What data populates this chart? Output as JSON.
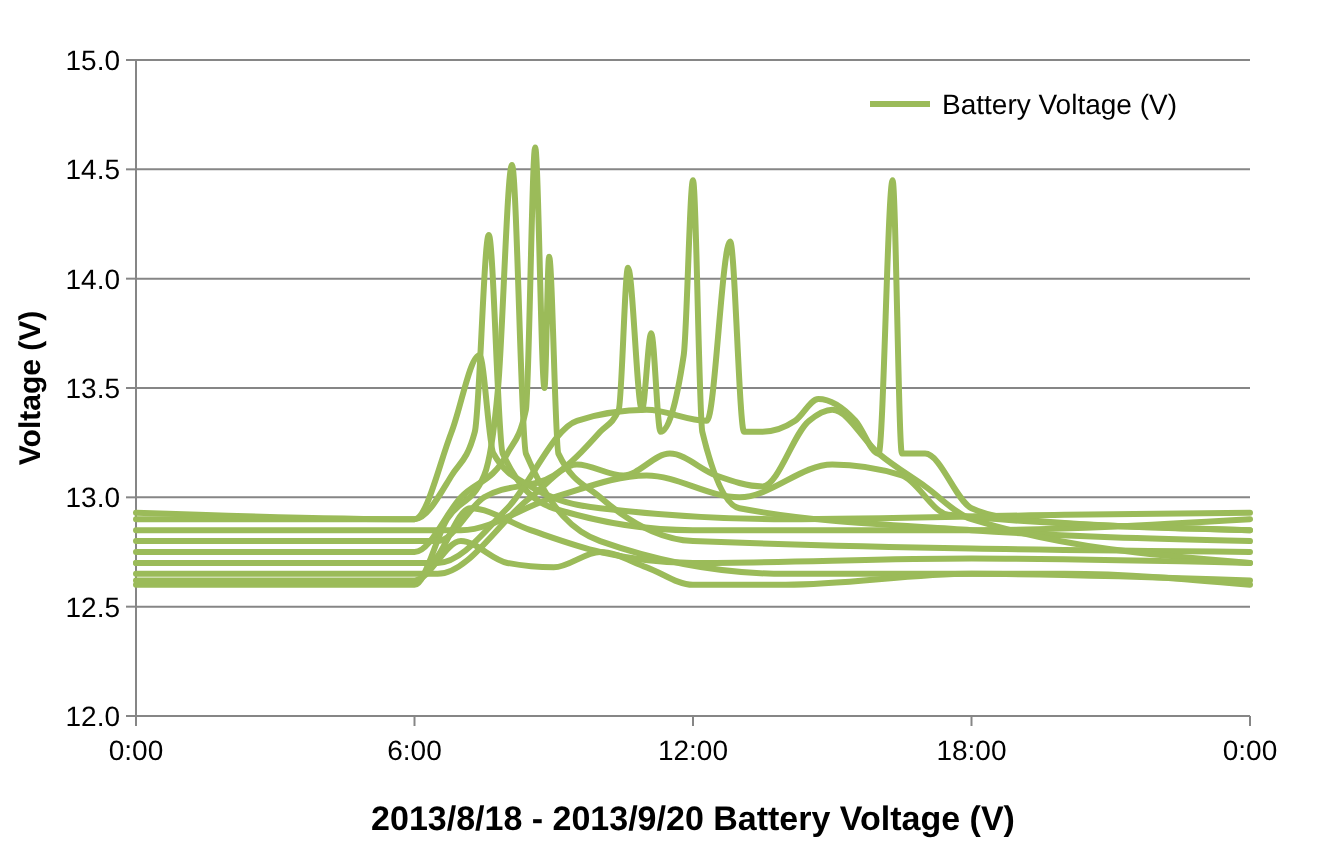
{
  "chart_data": {
    "type": "line",
    "xlabel": "2013/8/18 - 2013/9/20  Battery Voltage (V)",
    "ylabel": "Voltage (V)",
    "xlim": [
      0,
      24
    ],
    "xticks": [
      {
        "value": 0,
        "label": "0:00"
      },
      {
        "value": 6,
        "label": "6:00"
      },
      {
        "value": 12,
        "label": "12:00"
      },
      {
        "value": 18,
        "label": "18:00"
      },
      {
        "value": 24,
        "label": "0:00"
      }
    ],
    "ylim": [
      12,
      15
    ],
    "yticks": [
      {
        "value": 12,
        "label": "12.0"
      },
      {
        "value": 12.5,
        "label": "12.5"
      },
      {
        "value": 13,
        "label": "13.0"
      },
      {
        "value": 13.5,
        "label": "13.5"
      },
      {
        "value": 14,
        "label": "14.0"
      },
      {
        "value": 14.5,
        "label": "14.5"
      },
      {
        "value": 15,
        "label": "15.0"
      }
    ],
    "grid": "y",
    "legend": "top right",
    "marker": "none",
    "line_style": "solid",
    "series": [
      {
        "name": "Battery Voltage (V)",
        "color": "#9bbb59",
        "x": [
          0,
          3,
          6,
          6.8,
          7.3,
          7.6,
          7.9,
          9,
          12,
          18,
          24
        ],
        "values": [
          12.9,
          12.9,
          12.9,
          13.1,
          13.3,
          14.2,
          13.2,
          12.95,
          12.85,
          12.85,
          12.9
        ]
      },
      {
        "color": "#9bbb59",
        "x": [
          0,
          6,
          6.7,
          7.5,
          7.8,
          8.1,
          8.4,
          10,
          14,
          20,
          24
        ],
        "values": [
          12.6,
          12.6,
          12.9,
          13.1,
          13.5,
          14.52,
          13.2,
          12.8,
          12.65,
          12.65,
          12.6
        ]
      },
      {
        "color": "#9bbb59",
        "x": [
          0,
          6,
          7,
          8,
          8.4,
          8.6,
          8.8,
          8.9,
          9.1,
          10,
          12,
          24
        ],
        "values": [
          12.75,
          12.75,
          13.0,
          13.2,
          13.4,
          14.6,
          13.5,
          14.1,
          13.2,
          13.0,
          12.8,
          12.75
        ]
      },
      {
        "color": "#9bbb59",
        "x": [
          0,
          6.5,
          7.5,
          9,
          10,
          10.4,
          10.6,
          10.9,
          11.1,
          11.3,
          11.8,
          12,
          12.2,
          13,
          18,
          24
        ],
        "values": [
          12.8,
          12.8,
          13.0,
          13.1,
          13.3,
          13.4,
          14.05,
          13.4,
          13.75,
          13.3,
          13.65,
          14.45,
          13.3,
          12.95,
          12.85,
          12.8
        ]
      },
      {
        "color": "#9bbb59",
        "x": [
          0,
          6.5,
          8,
          9.5,
          11,
          12.3,
          12.8,
          13.1,
          13.5,
          14.2,
          14.7,
          15.5,
          16,
          16.3,
          16.5,
          17,
          18,
          19,
          24
        ],
        "values": [
          12.7,
          12.7,
          12.95,
          13.35,
          13.4,
          13.35,
          14.17,
          13.3,
          13.3,
          13.35,
          13.45,
          13.35,
          13.2,
          14.45,
          13.2,
          13.2,
          12.95,
          12.9,
          12.85
        ]
      },
      {
        "color": "#9bbb59",
        "x": [
          0,
          6.5,
          8.5,
          9.5,
          10.5,
          11.5,
          12.5,
          13.5,
          14.5,
          15,
          16,
          17,
          18,
          24
        ],
        "values": [
          12.65,
          12.65,
          13.0,
          13.15,
          13.1,
          13.2,
          13.1,
          13.05,
          13.35,
          13.4,
          13.2,
          13.05,
          12.9,
          12.7
        ]
      },
      {
        "color": "#9bbb59",
        "x": [
          0,
          7,
          9,
          11,
          13,
          15,
          16.5,
          17.5,
          24
        ],
        "values": [
          12.85,
          12.85,
          13.0,
          13.1,
          13.0,
          13.15,
          13.1,
          12.92,
          12.85
        ]
      },
      {
        "color": "#9bbb59",
        "x": [
          0,
          6,
          7,
          8,
          9,
          10,
          11,
          12,
          14,
          18,
          24
        ],
        "values": [
          12.62,
          12.62,
          12.8,
          12.7,
          12.68,
          12.75,
          12.68,
          12.6,
          12.6,
          12.65,
          12.62
        ]
      },
      {
        "color": "#9bbb59",
        "x": [
          0,
          6.3,
          7.2,
          8.5,
          10,
          12,
          18,
          24
        ],
        "values": [
          12.7,
          12.7,
          12.95,
          12.85,
          12.75,
          12.7,
          12.72,
          12.7
        ]
      },
      {
        "color": "#9bbb59",
        "x": [
          0,
          6,
          6.8,
          7.4,
          7.7,
          8.5,
          10,
          14,
          20,
          24
        ],
        "values": [
          12.93,
          12.9,
          13.3,
          13.65,
          13.2,
          13.05,
          12.95,
          12.9,
          12.92,
          12.93
        ]
      }
    ]
  }
}
